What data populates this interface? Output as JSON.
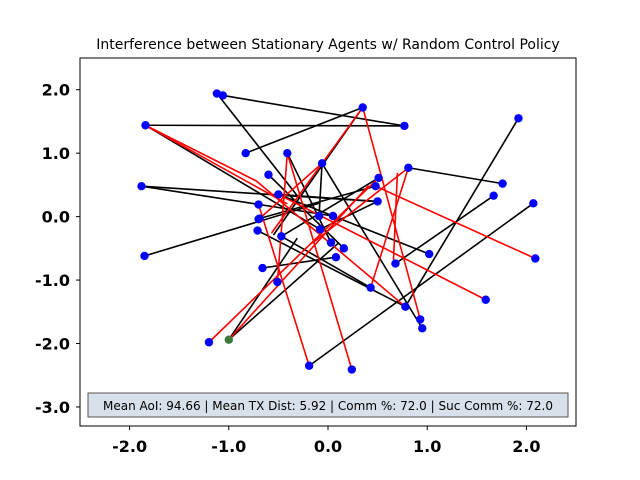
{
  "chart_data": {
    "type": "scatter",
    "title": "Interference between Stationary Agents w/ Random Control Policy",
    "xlabel": "",
    "ylabel": "",
    "xlim": [
      -2.5,
      2.5
    ],
    "ylim": [
      -3.3,
      2.5
    ],
    "xticks": [
      -2.0,
      -1.0,
      0.0,
      1.0,
      2.0
    ],
    "xtick_labels": [
      "-2.0",
      "-1.0",
      "0.0",
      "1.0",
      "2.0"
    ],
    "yticks": [
      2.0,
      1.0,
      0.0,
      -1.0,
      -2.0,
      -3.0
    ],
    "ytick_labels": [
      "2.0",
      "1.0",
      "0.0",
      "-1.0",
      "-2.0",
      "-3.0"
    ],
    "grid": false,
    "agent_color": "#0000ff",
    "highlight_color": "#3a7a3a",
    "agents": [
      [
        -1.12,
        1.94
      ],
      [
        -1.06,
        1.91
      ],
      [
        0.35,
        1.72
      ],
      [
        -1.84,
        1.44
      ],
      [
        0.77,
        1.43
      ],
      [
        1.92,
        1.55
      ],
      [
        -0.83,
        1.0
      ],
      [
        -0.41,
        1.0
      ],
      [
        -0.06,
        0.84
      ],
      [
        0.81,
        0.77
      ],
      [
        -0.6,
        0.66
      ],
      [
        0.51,
        0.61
      ],
      [
        1.76,
        0.52
      ],
      [
        -1.88,
        0.48
      ],
      [
        0.48,
        0.48
      ],
      [
        -0.5,
        0.35
      ],
      [
        1.67,
        0.33
      ],
      [
        0.5,
        0.24
      ],
      [
        -0.7,
        0.19
      ],
      [
        2.07,
        0.21
      ],
      [
        0.05,
        0.01
      ],
      [
        -0.09,
        0.01
      ],
      [
        -0.69,
        -0.03
      ],
      [
        -0.7,
        -0.04
      ],
      [
        -0.08,
        -0.2
      ],
      [
        -0.71,
        -0.22
      ],
      [
        -0.47,
        -0.31
      ],
      [
        0.03,
        -0.41
      ],
      [
        0.16,
        -0.5
      ],
      [
        -1.85,
        -0.62
      ],
      [
        1.02,
        -0.59
      ],
      [
        0.08,
        -0.64
      ],
      [
        2.09,
        -0.66
      ],
      [
        0.68,
        -0.74
      ],
      [
        -0.66,
        -0.81
      ],
      [
        -0.51,
        -1.03
      ],
      [
        0.43,
        -1.12
      ],
      [
        1.59,
        -1.31
      ],
      [
        0.78,
        -1.42
      ],
      [
        0.93,
        -1.62
      ],
      [
        0.95,
        -1.76
      ],
      [
        -1.2,
        -1.98
      ],
      [
        -0.19,
        -2.35
      ],
      [
        0.24,
        -2.41
      ]
    ],
    "highlight_agent": [
      -1.0,
      -1.94
    ],
    "links_black": [
      [
        [
          -1.84,
          1.44
        ],
        [
          0.77,
          1.43
        ]
      ],
      [
        [
          -1.84,
          1.44
        ],
        [
          -0.08,
          -0.2
        ]
      ],
      [
        [
          -1.88,
          0.48
        ],
        [
          0.48,
          0.24
        ]
      ],
      [
        [
          -1.88,
          0.48
        ],
        [
          0.05,
          0.01
        ]
      ],
      [
        [
          -1.12,
          1.94
        ],
        [
          -0.29,
          0.29
        ]
      ],
      [
        [
          -1.06,
          1.91
        ],
        [
          0.77,
          1.43
        ]
      ],
      [
        [
          -0.83,
          1.0
        ],
        [
          0.35,
          1.72
        ]
      ],
      [
        [
          -0.41,
          1.0
        ],
        [
          0.03,
          -0.41
        ]
      ],
      [
        [
          0.35,
          1.72
        ],
        [
          -0.55,
          -0.29
        ]
      ],
      [
        [
          -0.6,
          0.66
        ],
        [
          0.16,
          -0.5
        ]
      ],
      [
        [
          0.81,
          0.77
        ],
        [
          1.76,
          0.52
        ]
      ],
      [
        [
          0.51,
          0.61
        ],
        [
          -0.47,
          -0.31
        ]
      ],
      [
        [
          0.48,
          0.48
        ],
        [
          -0.69,
          -0.03
        ]
      ],
      [
        [
          0.5,
          0.24
        ],
        [
          -0.5,
          0.35
        ]
      ],
      [
        [
          -0.5,
          0.35
        ],
        [
          1.02,
          -0.59
        ]
      ],
      [
        [
          1.92,
          1.55
        ],
        [
          0.78,
          -1.42
        ]
      ],
      [
        [
          1.67,
          0.33
        ],
        [
          0.68,
          -0.74
        ]
      ],
      [
        [
          2.07,
          0.21
        ],
        [
          -0.19,
          -2.35
        ]
      ],
      [
        [
          -0.06,
          0.84
        ],
        [
          0.95,
          -1.76
        ]
      ],
      [
        [
          -0.06,
          0.84
        ],
        [
          -0.09,
          0.01
        ]
      ],
      [
        [
          -1.85,
          -0.62
        ],
        [
          -0.09,
          0.21
        ]
      ],
      [
        [
          -0.66,
          -0.81
        ],
        [
          0.08,
          -0.64
        ]
      ],
      [
        [
          0.43,
          -1.12
        ],
        [
          -0.47,
          -0.31
        ]
      ],
      [
        [
          -1.0,
          -1.94
        ],
        [
          0.11,
          -0.41
        ]
      ],
      [
        [
          -1.0,
          -1.94
        ],
        [
          -0.31,
          -0.34
        ]
      ],
      [
        [
          0.78,
          -1.42
        ],
        [
          -0.71,
          -0.22
        ]
      ],
      [
        [
          -0.08,
          -0.2
        ],
        [
          0.5,
          0.24
        ]
      ]
    ],
    "links_red": [
      [
        [
          -1.84,
          1.44
        ],
        [
          -0.72,
          0.56
        ]
      ],
      [
        [
          -0.72,
          0.56
        ],
        [
          0.78,
          -1.42
        ]
      ],
      [
        [
          -1.84,
          1.44
        ],
        [
          -0.41,
          0.2
        ]
      ],
      [
        [
          0.35,
          1.72
        ],
        [
          -0.57,
          -0.26
        ]
      ],
      [
        [
          0.35,
          1.72
        ],
        [
          0.93,
          -1.62
        ]
      ],
      [
        [
          -0.41,
          1.0
        ],
        [
          0.24,
          -2.41
        ]
      ],
      [
        [
          -0.41,
          1.0
        ],
        [
          -0.51,
          -1.03
        ]
      ],
      [
        [
          0.81,
          0.77
        ],
        [
          0.43,
          -1.12
        ]
      ],
      [
        [
          0.81,
          0.77
        ],
        [
          -0.16,
          -0.42
        ]
      ],
      [
        [
          -1.2,
          -1.98
        ],
        [
          0.51,
          0.61
        ]
      ],
      [
        [
          -1.0,
          -1.94
        ],
        [
          0.41,
          0.49
        ]
      ],
      [
        [
          -0.7,
          0.19
        ],
        [
          -0.19,
          -2.35
        ]
      ],
      [
        [
          -0.5,
          0.35
        ],
        [
          1.59,
          -1.31
        ]
      ],
      [
        [
          -0.06,
          0.84
        ],
        [
          -0.69,
          -0.03
        ]
      ],
      [
        [
          0.48,
          0.48
        ],
        [
          2.09,
          -0.66
        ]
      ],
      [
        [
          0.7,
          0.69
        ],
        [
          0.66,
          -0.68
        ]
      ]
    ]
  },
  "stats_box": {
    "text": "Mean AoI: 94.66 | Mean TX Dist: 5.92 | Comm %: 72.0 | Suc Comm %: 72.0",
    "fill": "#d8e0ea"
  }
}
